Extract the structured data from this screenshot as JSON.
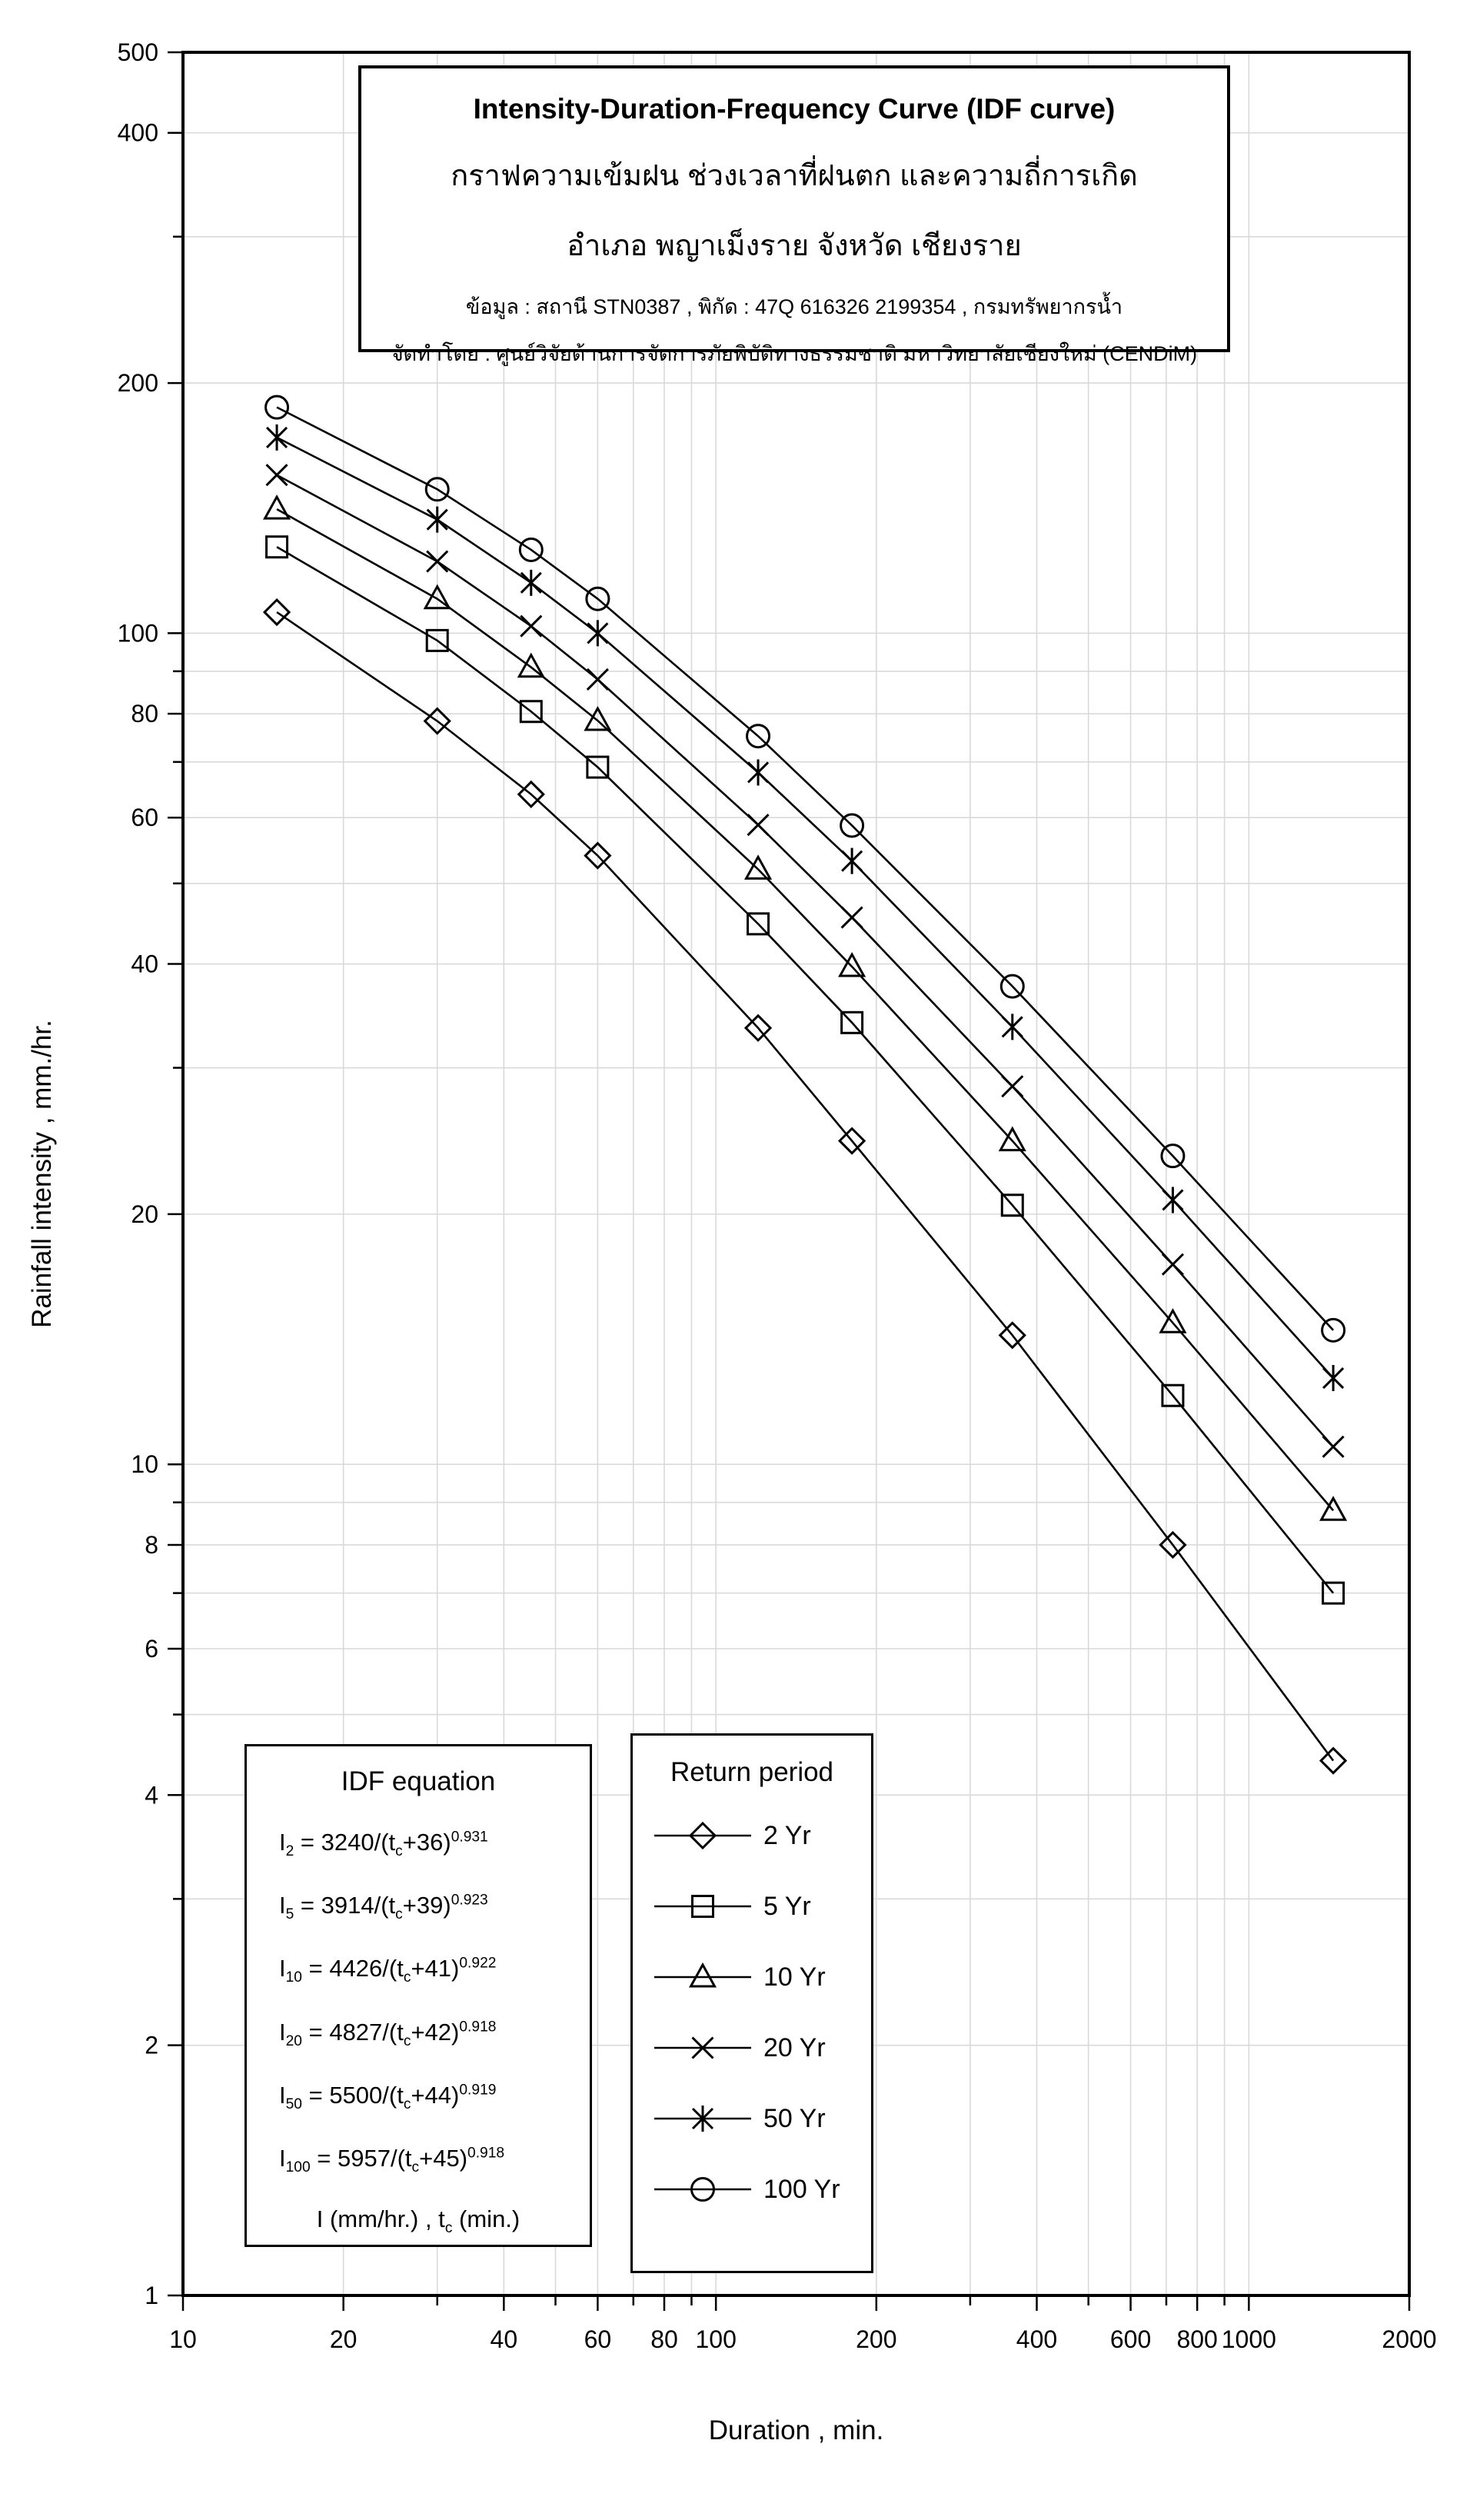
{
  "title_box": {
    "line1": "Intensity-Duration-Frequency Curve (IDF curve)",
    "line2": "กราฟความเข้มฝน ช่วงเวลาที่ฝนตก และความถี่การเกิด",
    "line3": "อำเภอ พญาเม็งราย จังหวัด เชียงราย",
    "line4": "ข้อมูล : สถานี STN0387 , พิกัด : 47Q 616326 2199354 , กรมทรัพยากรน้ำ",
    "line5": "จัดทำโดย : ศูนย์วิจัยด้านการจัดการภัยพิบัติทางธรรมชาติ มหาวิทยาลัยเชียงใหม่ (CENDiM)"
  },
  "equation_box": {
    "title": "IDF equation",
    "equations": [
      {
        "T": "2",
        "a": "3240",
        "b": "36",
        "n": "0.931"
      },
      {
        "T": "5",
        "a": "3914",
        "b": "39",
        "n": "0.923"
      },
      {
        "T": "10",
        "a": "4426",
        "b": "41",
        "n": "0.922"
      },
      {
        "T": "20",
        "a": "4827",
        "b": "42",
        "n": "0.918"
      },
      {
        "T": "50",
        "a": "5500",
        "b": "44",
        "n": "0.919"
      },
      {
        "T": "100",
        "a": "5957",
        "b": "45",
        "n": "0.918"
      }
    ],
    "units": {
      "prefix": "I (mm/hr.) , t",
      "sub": "c",
      "suffix": " (min.)"
    }
  },
  "legend": {
    "title": "Return period",
    "items": [
      {
        "label": "2 Yr",
        "marker": "diamond"
      },
      {
        "label": "5 Yr",
        "marker": "square"
      },
      {
        "label": "10 Yr",
        "marker": "triangle"
      },
      {
        "label": "20 Yr",
        "marker": "x"
      },
      {
        "label": "50 Yr",
        "marker": "asterisk"
      },
      {
        "label": "100 Yr",
        "marker": "circle"
      }
    ]
  },
  "colors": {
    "background": "#ffffff",
    "grid": "#d9d9d9",
    "axis": "#000000",
    "series": "#000000"
  },
  "chart_data": {
    "type": "line",
    "title": "Intensity-Duration-Frequency Curve (IDF curve)",
    "xlabel": "Duration , min.",
    "ylabel": "Rainfall intensity , mm./hr.",
    "x_scale": "log",
    "y_scale": "log",
    "xlim": [
      10,
      2000
    ],
    "ylim": [
      1,
      500
    ],
    "grid": true,
    "legend_position": "lower-left box",
    "x_ticks_labeled": [
      10,
      20,
      40,
      60,
      80,
      100,
      200,
      400,
      600,
      800,
      1000,
      2000
    ],
    "y_ticks_labeled": [
      500,
      400,
      200,
      100,
      80,
      60,
      40,
      20,
      10,
      8,
      6,
      4,
      2,
      1
    ],
    "x": [
      15,
      30,
      45,
      60,
      120,
      180,
      360,
      720,
      1440
    ],
    "series": [
      {
        "name": "2 Yr",
        "marker": "diamond",
        "values": [
          106,
          78.4,
          64,
          54,
          33.5,
          24.5,
          14.3,
          8.0,
          4.4
        ]
      },
      {
        "name": "5 Yr",
        "marker": "square",
        "values": [
          127,
          98,
          80.5,
          69,
          44.7,
          34,
          20.5,
          12.1,
          7.0
        ]
      },
      {
        "name": "10 Yr",
        "marker": "triangle",
        "values": [
          141,
          110,
          91,
          78.5,
          52,
          39.7,
          24.5,
          14.8,
          8.8
        ]
      },
      {
        "name": "20 Yr",
        "marker": "x",
        "values": [
          155,
          122,
          102,
          88,
          58.8,
          45.5,
          28.5,
          17.4,
          10.5
        ]
      },
      {
        "name": "50 Yr",
        "marker": "asterisk",
        "values": [
          172,
          137,
          115,
          100,
          68,
          53.2,
          33.6,
          20.8,
          12.7
        ]
      },
      {
        "name": "100 Yr",
        "marker": "circle",
        "values": [
          187,
          149,
          126,
          110,
          75.2,
          58.7,
          37.6,
          23.5,
          14.5
        ]
      }
    ]
  }
}
